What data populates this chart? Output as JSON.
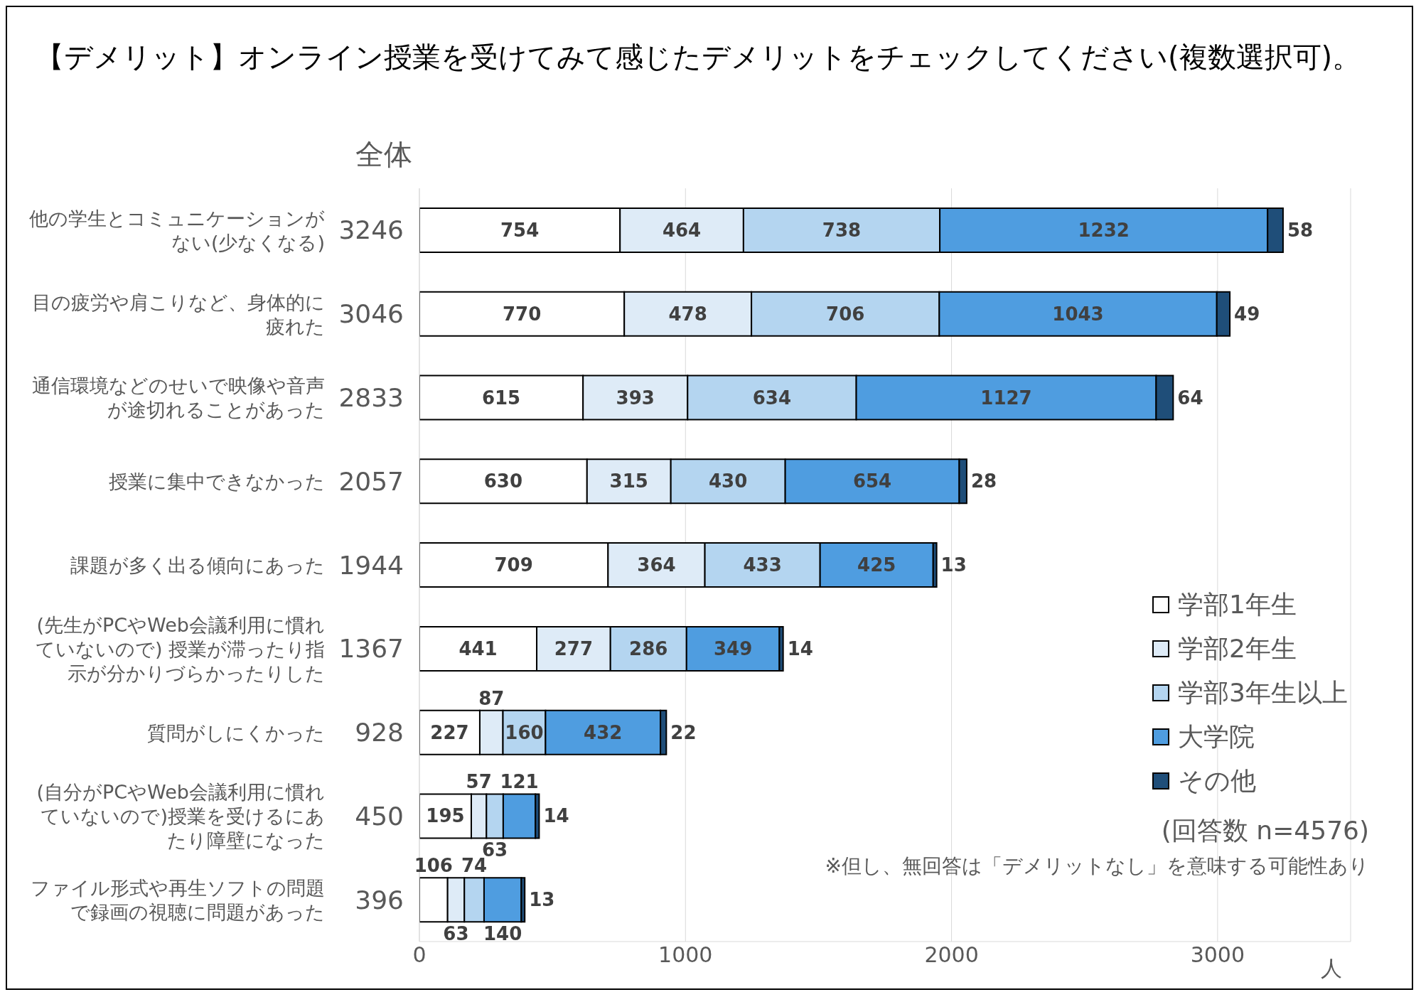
{
  "chart_data": {
    "type": "bar",
    "orientation": "horizontal",
    "stacked": true,
    "title": "【デメリット】オンライン授業を受けてみて感じたデメリットをチェックしてください(複数選択可)。",
    "xlabel": "人",
    "categories": [
      "他の学生とコミュニケーションがない(少なくなる)",
      "目の疲労や肩こりなど、身体的に疲れた",
      "通信環境などのせいで映像や音声が途切れることがあった",
      "授業に集中できなかった",
      "課題が多く出る傾向にあった",
      "(先生がPCやWeb会議利用に慣れていないので) 授業が滞ったり指示が分かりづらかったりした",
      "質問がしにくかった",
      "(自分がPCやWeb会議利用に慣れていないので)授業を受けるにあたり障壁になった",
      "ファイル形式や再生ソフトの問題で録画の視聴に問題があった"
    ],
    "series": [
      {
        "name": "学部1年生",
        "color": "#ffffff",
        "values": [
          754,
          770,
          615,
          630,
          709,
          441,
          227,
          195,
          106
        ]
      },
      {
        "name": "学部2年生",
        "color": "#deebf7",
        "values": [
          464,
          478,
          393,
          315,
          364,
          277,
          87,
          57,
          63
        ]
      },
      {
        "name": "学部3年生以上",
        "color": "#b4d5f0",
        "values": [
          738,
          706,
          634,
          430,
          433,
          286,
          160,
          63,
          74
        ]
      },
      {
        "name": "大学院",
        "color": "#4f9de0",
        "values": [
          1232,
          1043,
          1127,
          654,
          425,
          349,
          432,
          121,
          140
        ]
      },
      {
        "name": "その他",
        "color": "#1f4e79",
        "values": [
          58,
          49,
          64,
          28,
          13,
          14,
          22,
          14,
          13
        ]
      }
    ],
    "totals": [
      "3246",
      "3046",
      "2833",
      "2057",
      "1944",
      "1367",
      "928",
      "450",
      "396"
    ],
    "xlim": [
      0,
      3500
    ],
    "xticks": [
      0,
      1000,
      2000,
      3000
    ],
    "grid": "x",
    "legend": "bottom right",
    "data_labels": true,
    "annotations": [
      "全体",
      "(回答数 n=4576)",
      "※但し、無回答は「デメリットなし」を意味する可能性あり"
    ]
  }
}
